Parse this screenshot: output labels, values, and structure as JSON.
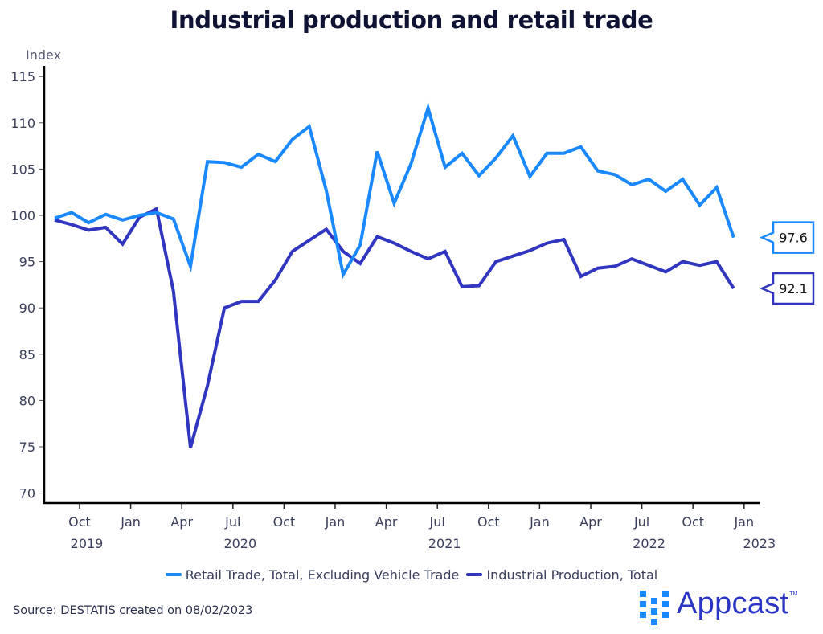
{
  "chart_data": {
    "type": "line",
    "title": "Industrial production and retail trade",
    "ylabel": "Index",
    "xlabel": "",
    "ylim": [
      69,
      116
    ],
    "yticks": [
      70,
      75,
      80,
      85,
      90,
      95,
      100,
      105,
      110,
      115
    ],
    "grid": false,
    "legend_position": "bottom",
    "x": [
      "2019-08",
      "2019-09",
      "2019-10",
      "2019-11",
      "2019-12",
      "2020-01",
      "2020-02",
      "2020-03",
      "2020-04",
      "2020-05",
      "2020-06",
      "2020-07",
      "2020-08",
      "2020-09",
      "2020-10",
      "2020-11",
      "2020-12",
      "2021-01",
      "2021-02",
      "2021-03",
      "2021-04",
      "2021-05",
      "2021-06",
      "2021-07",
      "2021-08",
      "2021-09",
      "2021-10",
      "2021-11",
      "2021-12",
      "2022-01",
      "2022-02",
      "2022-03",
      "2022-04",
      "2022-05",
      "2022-06",
      "2022-07",
      "2022-08",
      "2022-09",
      "2022-10",
      "2022-11",
      "2022-12"
    ],
    "xticks": [
      {
        "label": "Oct",
        "year": "2019"
      },
      {
        "label": "Jan",
        "year": ""
      },
      {
        "label": "Apr",
        "year": ""
      },
      {
        "label": "Jul",
        "year": "2020"
      },
      {
        "label": "Oct",
        "year": ""
      },
      {
        "label": "Jan",
        "year": ""
      },
      {
        "label": "Apr",
        "year": ""
      },
      {
        "label": "Jul",
        "year": "2021"
      },
      {
        "label": "Oct",
        "year": ""
      },
      {
        "label": "Jan",
        "year": ""
      },
      {
        "label": "Apr",
        "year": ""
      },
      {
        "label": "Jul",
        "year": "2022"
      },
      {
        "label": "Oct",
        "year": ""
      },
      {
        "label": "Jan",
        "year": "2023"
      }
    ],
    "series": [
      {
        "name": "Retail Trade, Total, Excluding Vehicle Trade",
        "color": "#1a88ff",
        "values": [
          99.7,
          100.3,
          99.2,
          100.1,
          99.5,
          100.0,
          100.3,
          99.6,
          94.5,
          105.8,
          105.7,
          105.2,
          106.6,
          105.8,
          108.2,
          109.6,
          102.7,
          93.6,
          96.8,
          106.9,
          101.3,
          105.6,
          111.6,
          105.2,
          106.7,
          104.3,
          106.2,
          108.6,
          104.2,
          106.7,
          106.7,
          107.4,
          104.8,
          104.4,
          103.3,
          103.9,
          102.6,
          103.9,
          101.1,
          103.0,
          97.6
        ],
        "last_value_label": "97.6"
      },
      {
        "name": "Industrial Production, Total",
        "color": "#3036c0",
        "values": [
          99.5,
          99.0,
          98.4,
          98.7,
          96.9,
          99.8,
          100.7,
          91.8,
          74.9,
          81.6,
          90.0,
          90.7,
          90.7,
          93.0,
          96.1,
          97.3,
          98.5,
          96.1,
          94.8,
          97.7,
          97.0,
          96.1,
          95.3,
          96.1,
          92.3,
          92.4,
          95.0,
          95.6,
          96.2,
          97.0,
          97.4,
          93.4,
          94.3,
          94.5,
          95.3,
          94.6,
          93.9,
          95.0,
          94.6,
          95.0,
          92.1
        ],
        "last_value_label": "92.1"
      }
    ]
  },
  "footer": {
    "source": "Source: DESTATIS created on 08/02/2023",
    "logo_text": "Appcast",
    "logo_tm": "TM"
  }
}
